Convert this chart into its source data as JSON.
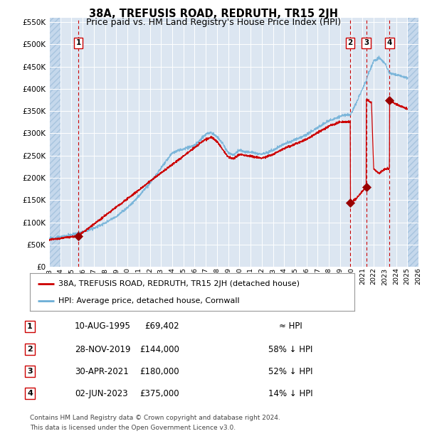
{
  "title": "38A, TREFUSIS ROAD, REDRUTH, TR15 2JH",
  "subtitle": "Price paid vs. HM Land Registry's House Price Index (HPI)",
  "xlim": [
    1993,
    2026
  ],
  "ylim": [
    0,
    560000
  ],
  "yticks": [
    0,
    50000,
    100000,
    150000,
    200000,
    250000,
    300000,
    350000,
    400000,
    450000,
    500000,
    550000
  ],
  "xticks": [
    1993,
    1994,
    1995,
    1996,
    1997,
    1998,
    1999,
    2000,
    2001,
    2002,
    2003,
    2004,
    2005,
    2006,
    2007,
    2008,
    2009,
    2010,
    2011,
    2012,
    2013,
    2014,
    2015,
    2016,
    2017,
    2018,
    2019,
    2020,
    2021,
    2022,
    2023,
    2024,
    2025,
    2026
  ],
  "bg_color": "#dce6f1",
  "hatch_color": "#c5d8ec",
  "grid_color": "#ffffff",
  "hpi_color": "#6baed6",
  "price_color": "#cc0000",
  "sale_dot_color": "#990000",
  "dashed_line_color": "#cc0000",
  "legend_label_price": "38A, TREFUSIS ROAD, REDRUTH, TR15 2JH (detached house)",
  "legend_label_hpi": "HPI: Average price, detached house, Cornwall",
  "sales": [
    {
      "num": 1,
      "date_label": "10-AUG-1995",
      "date_x": 1995.61,
      "price": 69402,
      "hpi_note": "≈ HPI"
    },
    {
      "num": 2,
      "date_label": "28-NOV-2019",
      "date_x": 2019.91,
      "price": 144000,
      "hpi_note": "58% ↓ HPI"
    },
    {
      "num": 3,
      "date_label": "30-APR-2021",
      "date_x": 2021.33,
      "price": 180000,
      "hpi_note": "52% ↓ HPI"
    },
    {
      "num": 4,
      "date_label": "02-JUN-2023",
      "date_x": 2023.42,
      "price": 375000,
      "hpi_note": "14% ↓ HPI"
    }
  ],
  "footnote1": "Contains HM Land Registry data © Crown copyright and database right 2024.",
  "footnote2": "This data is licensed under the Open Government Licence v3.0."
}
